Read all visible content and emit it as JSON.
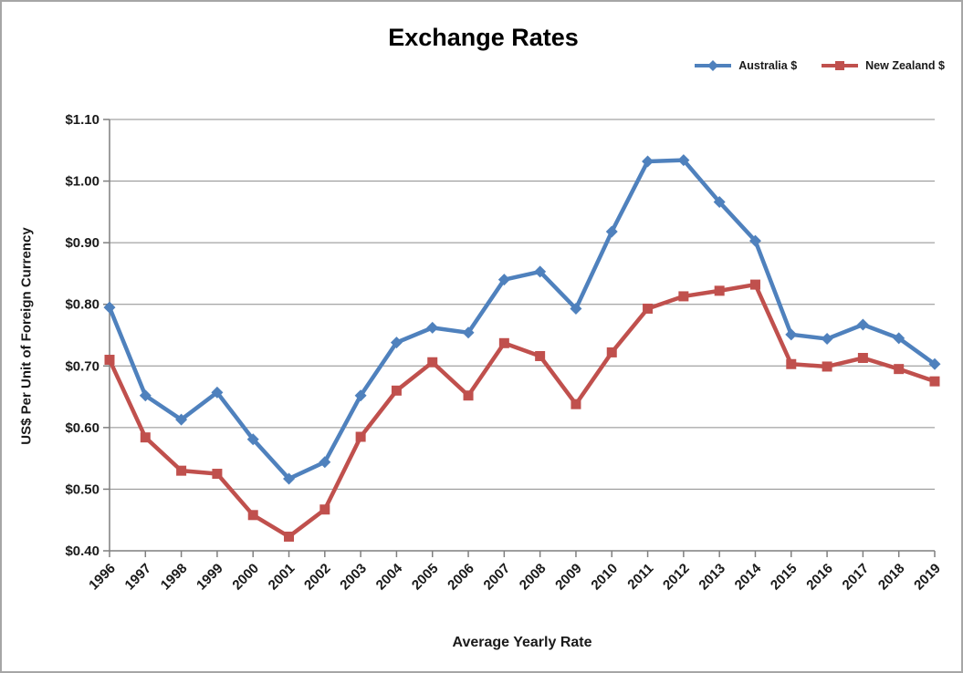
{
  "chart_data": {
    "type": "line",
    "title": "Exchange Rates",
    "xlabel": "Average Yearly Rate",
    "ylabel": "US$ Per Unit of Foreign Currency",
    "categories": [
      "1996",
      "1997",
      "1998",
      "1999",
      "2000",
      "2001",
      "2002",
      "2003",
      "2004",
      "2005",
      "2006",
      "2007",
      "2008",
      "2009",
      "2010",
      "2011",
      "2012",
      "2013",
      "2014",
      "2015",
      "2016",
      "2017",
      "2018",
      "2019"
    ],
    "series": [
      {
        "name": "Australia $",
        "color": "#4F81BD",
        "marker": "diamond",
        "values": [
          0.795,
          0.652,
          0.613,
          0.657,
          0.581,
          0.517,
          0.544,
          0.652,
          0.738,
          0.762,
          0.754,
          0.84,
          0.853,
          0.793,
          0.918,
          1.032,
          1.034,
          0.966,
          0.903,
          0.751,
          0.744,
          0.767,
          0.745,
          0.703
        ]
      },
      {
        "name": "New Zealand $",
        "color": "#C0504D",
        "marker": "square",
        "values": [
          0.71,
          0.584,
          0.53,
          0.525,
          0.458,
          0.423,
          0.467,
          0.585,
          0.66,
          0.706,
          0.652,
          0.737,
          0.716,
          0.638,
          0.722,
          0.793,
          0.813,
          0.822,
          0.832,
          0.703,
          0.699,
          0.713,
          0.695,
          0.675
        ]
      }
    ],
    "ylim": [
      0.4,
      1.1
    ],
    "y_tick_values": [
      1.1,
      1.0,
      0.9,
      0.8,
      0.7,
      0.6,
      0.5,
      0.4
    ],
    "y_tick_labels": [
      "$1.10",
      "$1.00",
      "$0.90",
      "$0.80",
      "$0.70",
      "$0.60",
      "$0.50",
      "$0.40"
    ],
    "grid": "horizontal",
    "legend_position": "top-right",
    "colors": {
      "axis": "#7f7f7f",
      "gridline": "#8c8c8c",
      "text": "#1a1a1a",
      "background": "#ffffff",
      "border": "#a6a6a6"
    }
  }
}
